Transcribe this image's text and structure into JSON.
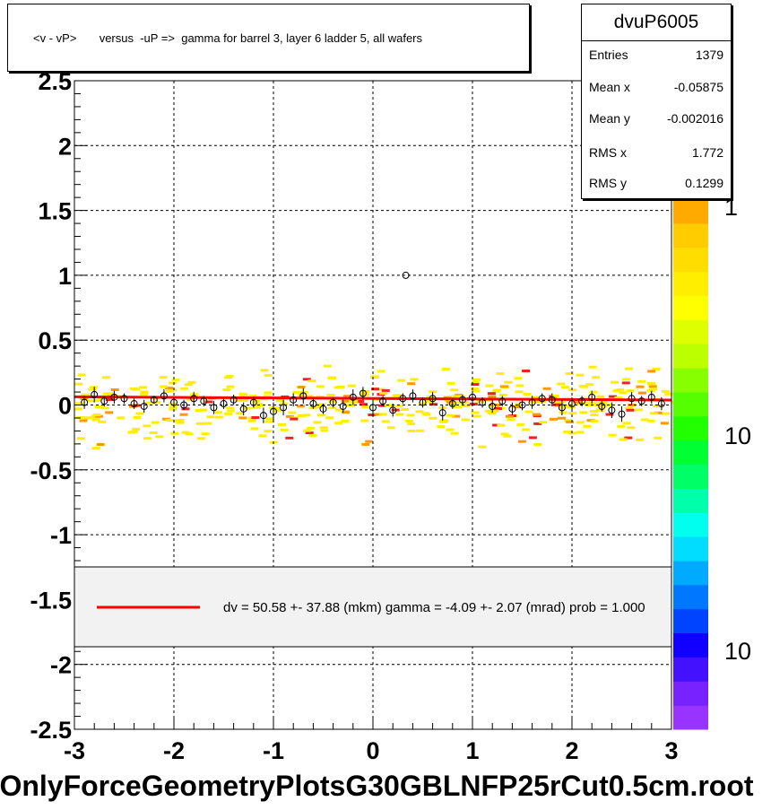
{
  "title": "<v - vP>       versus  -uP =>  gamma for barrel 3, layer 6 ladder 5, all wafers",
  "stats": {
    "name": "dvuP6005",
    "rows": [
      {
        "label": "Entries",
        "value": "1379"
      },
      {
        "label": "Mean x",
        "value": "-0.05875"
      },
      {
        "label": "Mean y",
        "value": "-0.002016"
      },
      {
        "label": "RMS x",
        "value": "1.772"
      },
      {
        "label": "RMS y",
        "value": "0.1299"
      }
    ]
  },
  "legend_text": "dv =   50.58 +- 37.88 (mkm) gamma =   -4.09 +-  2.07 (mrad) prob = 1.000",
  "filename": "OnlyForceGeometryPlotsG30GBLNFP25rCut0.5cm.root",
  "palette_labels": [
    "1",
    "10",
    "10"
  ],
  "colors": {
    "fit_line": "#ff0000",
    "marker": "#000000",
    "legend_bg": "#f2f2f2"
  },
  "chart_data": {
    "type": "scatter",
    "xlim": [
      -3,
      3
    ],
    "ylim": [
      -2.5,
      2.5
    ],
    "xticks": [
      "-3",
      "-2",
      "-1",
      "0",
      "1",
      "2",
      "3"
    ],
    "yticks": [
      "2.5",
      "2",
      "1.5",
      "1",
      "0.5",
      "0",
      "-0.5",
      "-1",
      "-1.5",
      "-2",
      "-2.5"
    ],
    "grid": true,
    "fit": {
      "x": [
        -3,
        3
      ],
      "y": [
        0.063,
        0.038
      ]
    },
    "profile_points": [
      {
        "x": -2.9,
        "y": 0.02,
        "e": 0.05
      },
      {
        "x": -2.8,
        "y": 0.08,
        "e": 0.06
      },
      {
        "x": -2.7,
        "y": 0.03,
        "e": 0.04
      },
      {
        "x": -2.6,
        "y": 0.06,
        "e": 0.05
      },
      {
        "x": -2.5,
        "y": 0.05,
        "e": 0.04
      },
      {
        "x": -2.4,
        "y": 0.01,
        "e": 0.04
      },
      {
        "x": -2.3,
        "y": -0.01,
        "e": 0.05
      },
      {
        "x": -2.2,
        "y": 0.04,
        "e": 0.03
      },
      {
        "x": -2.1,
        "y": 0.07,
        "e": 0.05
      },
      {
        "x": -2.0,
        "y": 0.02,
        "e": 0.04
      },
      {
        "x": -1.9,
        "y": 0.0,
        "e": 0.04
      },
      {
        "x": -1.8,
        "y": 0.05,
        "e": 0.05
      },
      {
        "x": -1.7,
        "y": 0.03,
        "e": 0.04
      },
      {
        "x": -1.6,
        "y": -0.02,
        "e": 0.05
      },
      {
        "x": -1.5,
        "y": 0.01,
        "e": 0.04
      },
      {
        "x": -1.4,
        "y": 0.04,
        "e": 0.04
      },
      {
        "x": -1.3,
        "y": -0.03,
        "e": 0.05
      },
      {
        "x": -1.2,
        "y": 0.02,
        "e": 0.04
      },
      {
        "x": -1.1,
        "y": -0.08,
        "e": 0.06
      },
      {
        "x": -1.0,
        "y": -0.05,
        "e": 0.07
      },
      {
        "x": -0.9,
        "y": -0.02,
        "e": 0.06
      },
      {
        "x": -0.8,
        "y": 0.04,
        "e": 0.05
      },
      {
        "x": -0.7,
        "y": 0.07,
        "e": 0.06
      },
      {
        "x": -0.6,
        "y": 0.01,
        "e": 0.04
      },
      {
        "x": -0.5,
        "y": -0.03,
        "e": 0.04
      },
      {
        "x": -0.4,
        "y": 0.02,
        "e": 0.04
      },
      {
        "x": -0.3,
        "y": -0.01,
        "e": 0.05
      },
      {
        "x": -0.2,
        "y": 0.06,
        "e": 0.06
      },
      {
        "x": -0.1,
        "y": 0.09,
        "e": 0.05
      },
      {
        "x": 0.0,
        "y": -0.02,
        "e": 0.06
      },
      {
        "x": 0.1,
        "y": 0.03,
        "e": 0.04
      },
      {
        "x": 0.2,
        "y": -0.04,
        "e": 0.05
      },
      {
        "x": 0.3,
        "y": 0.05,
        "e": 0.04
      },
      {
        "x": 0.33,
        "y": 1.0,
        "e": 0.0
      },
      {
        "x": 0.4,
        "y": 0.07,
        "e": 0.05
      },
      {
        "x": 0.5,
        "y": 0.02,
        "e": 0.04
      },
      {
        "x": 0.6,
        "y": 0.05,
        "e": 0.05
      },
      {
        "x": 0.7,
        "y": -0.06,
        "e": 0.06
      },
      {
        "x": 0.8,
        "y": 0.01,
        "e": 0.04
      },
      {
        "x": 0.9,
        "y": 0.04,
        "e": 0.04
      },
      {
        "x": 1.0,
        "y": 0.06,
        "e": 0.05
      },
      {
        "x": 1.1,
        "y": 0.02,
        "e": 0.04
      },
      {
        "x": 1.2,
        "y": -0.01,
        "e": 0.05
      },
      {
        "x": 1.3,
        "y": 0.03,
        "e": 0.04
      },
      {
        "x": 1.4,
        "y": -0.03,
        "e": 0.05
      },
      {
        "x": 1.5,
        "y": 0.0,
        "e": 0.04
      },
      {
        "x": 1.6,
        "y": 0.02,
        "e": 0.05
      },
      {
        "x": 1.7,
        "y": 0.05,
        "e": 0.04
      },
      {
        "x": 1.8,
        "y": 0.04,
        "e": 0.05
      },
      {
        "x": 1.9,
        "y": -0.02,
        "e": 0.06
      },
      {
        "x": 2.0,
        "y": 0.01,
        "e": 0.05
      },
      {
        "x": 2.1,
        "y": 0.03,
        "e": 0.04
      },
      {
        "x": 2.2,
        "y": 0.06,
        "e": 0.05
      },
      {
        "x": 2.3,
        "y": -0.01,
        "e": 0.04
      },
      {
        "x": 2.4,
        "y": -0.04,
        "e": 0.06
      },
      {
        "x": 2.5,
        "y": -0.07,
        "e": 0.06
      },
      {
        "x": 2.6,
        "y": 0.05,
        "e": 0.05
      },
      {
        "x": 2.7,
        "y": 0.03,
        "e": 0.04
      },
      {
        "x": 2.8,
        "y": 0.06,
        "e": 0.05
      },
      {
        "x": 2.9,
        "y": 0.01,
        "e": 0.05
      }
    ]
  }
}
